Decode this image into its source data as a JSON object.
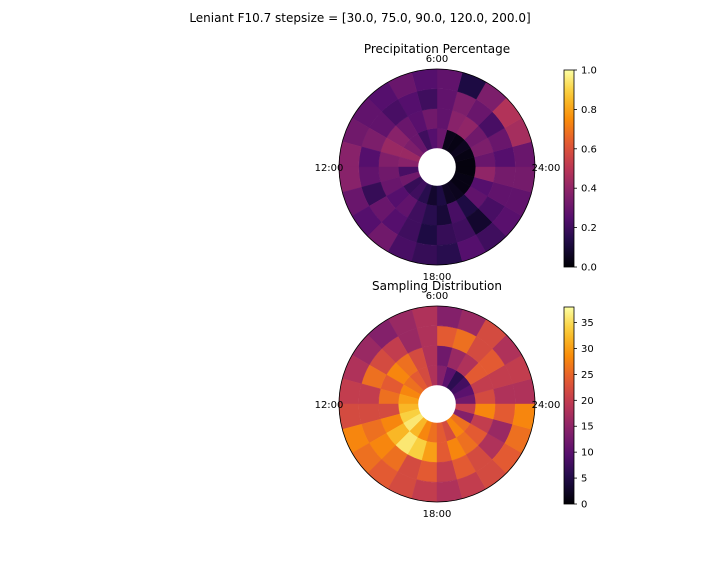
{
  "figure_title": "Leniant F10.7 stepsize = [30.0, 75.0, 90.0, 120.0, 200.0]",
  "colormap": "inferno",
  "chart_data": [
    {
      "type": "heatmap",
      "projection": "polar",
      "title": "Precipitation Percentage",
      "theta_labels": [
        "6:00",
        "12:00",
        "18:00",
        "24:00"
      ],
      "n_rings": 4,
      "n_sectors": 24,
      "colorbar": {
        "range": [
          0.0,
          1.0
        ],
        "ticks": [
          "0.0",
          "0.2",
          "0.4",
          "0.6",
          "0.8",
          "1.0"
        ],
        "tick_values": [
          0.0,
          0.2,
          0.4,
          0.6,
          0.8,
          1.0
        ]
      },
      "values": [
        [
          0.02,
          0.03,
          0.05,
          0.03,
          0.04,
          0.3,
          0.25,
          0.2,
          0.3,
          0.35,
          0.42,
          0.38,
          0.22,
          0.32,
          0.18,
          0.2,
          0.15,
          0.08,
          0.12,
          0.06,
          0.05,
          0.03,
          0.03,
          0.02
        ],
        [
          0.3,
          0.35,
          0.32,
          0.4,
          0.38,
          0.28,
          0.32,
          0.26,
          0.3,
          0.38,
          0.42,
          0.36,
          0.32,
          0.3,
          0.25,
          0.28,
          0.2,
          0.15,
          0.1,
          0.22,
          0.12,
          0.28,
          0.25,
          0.4
        ],
        [
          0.25,
          0.3,
          0.22,
          0.3,
          0.35,
          0.28,
          0.2,
          0.25,
          0.22,
          0.28,
          0.35,
          0.25,
          0.28,
          0.18,
          0.3,
          0.25,
          0.2,
          0.12,
          0.18,
          0.2,
          0.08,
          0.22,
          0.28,
          0.33
        ],
        [
          0.3,
          0.45,
          0.48,
          0.35,
          0.12,
          0.28,
          0.25,
          0.3,
          0.25,
          0.28,
          0.32,
          0.38,
          0.38,
          0.3,
          0.25,
          0.32,
          0.22,
          0.18,
          0.15,
          0.25,
          0.2,
          0.26,
          0.28,
          0.33
        ]
      ]
    },
    {
      "type": "heatmap",
      "projection": "polar",
      "title": "Sampling Distribution",
      "theta_labels": [
        "6:00",
        "12:00",
        "18:00",
        "24:00"
      ],
      "n_rings": 4,
      "n_sectors": 24,
      "colorbar": {
        "range": [
          0,
          38
        ],
        "ticks": [
          "0",
          "5",
          "10",
          "15",
          "20",
          "25",
          "30",
          "35"
        ],
        "tick_values": [
          0,
          5,
          10,
          15,
          20,
          25,
          30,
          35
        ]
      },
      "values": [
        [
          12,
          10,
          8,
          6,
          10,
          14,
          18,
          22,
          24,
          26,
          28,
          30,
          32,
          34,
          36,
          32,
          28,
          26,
          24,
          22,
          28,
          26,
          14,
          20
        ],
        [
          22,
          20,
          24,
          18,
          16,
          12,
          18,
          22,
          26,
          28,
          24,
          26,
          22,
          28,
          32,
          36,
          34,
          30,
          24,
          28,
          26,
          24,
          20,
          28
        ],
        [
          18,
          20,
          24,
          22,
          26,
          24,
          18,
          16,
          20,
          22,
          26,
          20,
          22,
          26,
          28,
          26,
          22,
          24,
          20,
          24,
          22,
          18,
          16,
          24
        ],
        [
          18,
          20,
          18,
          22,
          16,
          14,
          18,
          16,
          14,
          16,
          18,
          20,
          22,
          28,
          26,
          24,
          22,
          20,
          18,
          20,
          22,
          24,
          26,
          28
        ]
      ]
    }
  ]
}
